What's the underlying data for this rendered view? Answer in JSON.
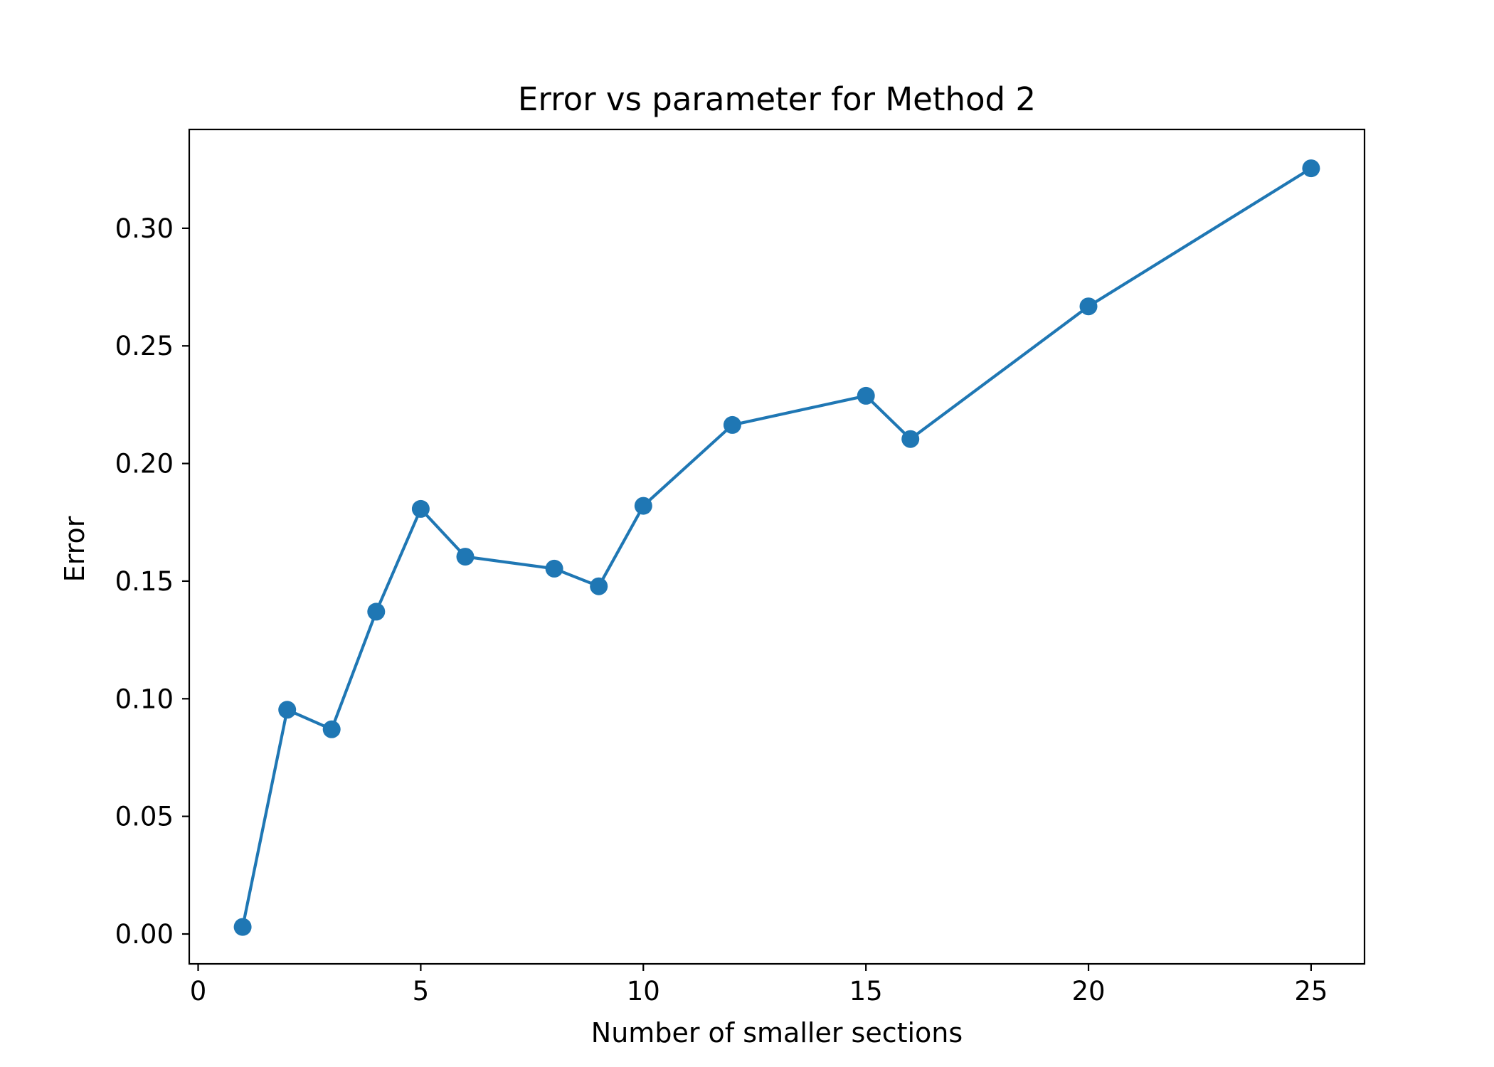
{
  "chart_data": {
    "type": "line",
    "title": "Error vs parameter for Method 2",
    "xlabel": "Number of smaller sections",
    "ylabel": "Error",
    "xlim": [
      -0.2,
      26.2
    ],
    "ylim": [
      -0.0127,
      0.342
    ],
    "xticks": [
      0,
      5,
      10,
      15,
      20,
      25
    ],
    "xtick_labels": [
      "0",
      "5",
      "10",
      "15",
      "20",
      "25"
    ],
    "yticks": [
      0.0,
      0.05,
      0.1,
      0.15,
      0.2,
      0.25,
      0.3
    ],
    "ytick_labels": [
      "0.00",
      "0.05",
      "0.10",
      "0.15",
      "0.20",
      "0.25",
      "0.30"
    ],
    "grid": false,
    "marker": "circle",
    "series": [
      {
        "color": "#1f77b4",
        "x": [
          1,
          2,
          3,
          4,
          5,
          6,
          8,
          9,
          10,
          12,
          15,
          16,
          20,
          25
        ],
        "y": [
          0.003,
          0.0953,
          0.087,
          0.137,
          0.1807,
          0.1604,
          0.1553,
          0.1478,
          0.182,
          0.2164,
          0.2288,
          0.2104,
          0.2668,
          0.3255
        ]
      }
    ]
  }
}
